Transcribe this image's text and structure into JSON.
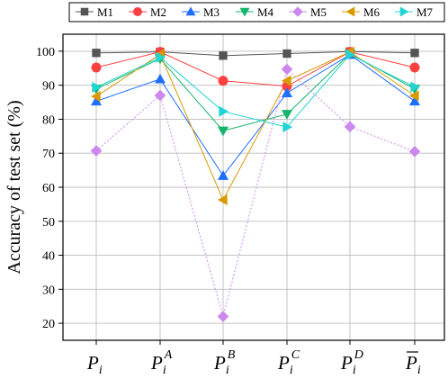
{
  "chart_data": {
    "type": "line",
    "ylabel": "Accuracy of test set (%)",
    "ylim": [
      15,
      105
    ],
    "yticks": [
      20,
      30,
      40,
      50,
      60,
      70,
      80,
      90,
      100
    ],
    "grid": true,
    "legend_position": "top",
    "categories": [
      {
        "base": "P",
        "sub": "i",
        "sup": "",
        "bar": false
      },
      {
        "base": "P",
        "sub": "i",
        "sup": "A",
        "bar": false
      },
      {
        "base": "P",
        "sub": "i",
        "sup": "B",
        "bar": false
      },
      {
        "base": "P",
        "sub": "i",
        "sup": "C",
        "bar": false
      },
      {
        "base": "P",
        "sub": "i",
        "sup": "D",
        "bar": false
      },
      {
        "base": "P",
        "sub": "i",
        "sup": "",
        "bar": true
      }
    ],
    "series": [
      {
        "name": "M1",
        "color": "#555555",
        "marker": "square",
        "values": [
          99.5,
          99.8,
          98.7,
          99.3,
          99.9,
          99.5
        ]
      },
      {
        "name": "M2",
        "color": "#ff4040",
        "marker": "circle",
        "values": [
          95.2,
          99.8,
          91.3,
          89.7,
          99.8,
          95.2
        ]
      },
      {
        "name": "M3",
        "color": "#1e6fff",
        "marker": "triangle-up",
        "values": [
          85.3,
          91.8,
          63.4,
          87.7,
          99.0,
          85.3
        ]
      },
      {
        "name": "M4",
        "color": "#16b36b",
        "marker": "triangle-down",
        "values": [
          88.9,
          97.8,
          76.6,
          81.5,
          99.3,
          88.9
        ]
      },
      {
        "name": "M5",
        "color": "#cc88ee",
        "marker": "diamond",
        "values": [
          70.7,
          87.0,
          22.0,
          94.7,
          77.8,
          70.5
        ]
      },
      {
        "name": "M6",
        "color": "#d99a00",
        "marker": "triangle-left",
        "values": [
          86.7,
          99.1,
          56.3,
          91.3,
          99.8,
          86.9
        ]
      },
      {
        "name": "M7",
        "color": "#22d4d4",
        "marker": "triangle-right",
        "values": [
          89.4,
          98.2,
          82.3,
          77.7,
          99.0,
          89.5
        ]
      }
    ]
  }
}
